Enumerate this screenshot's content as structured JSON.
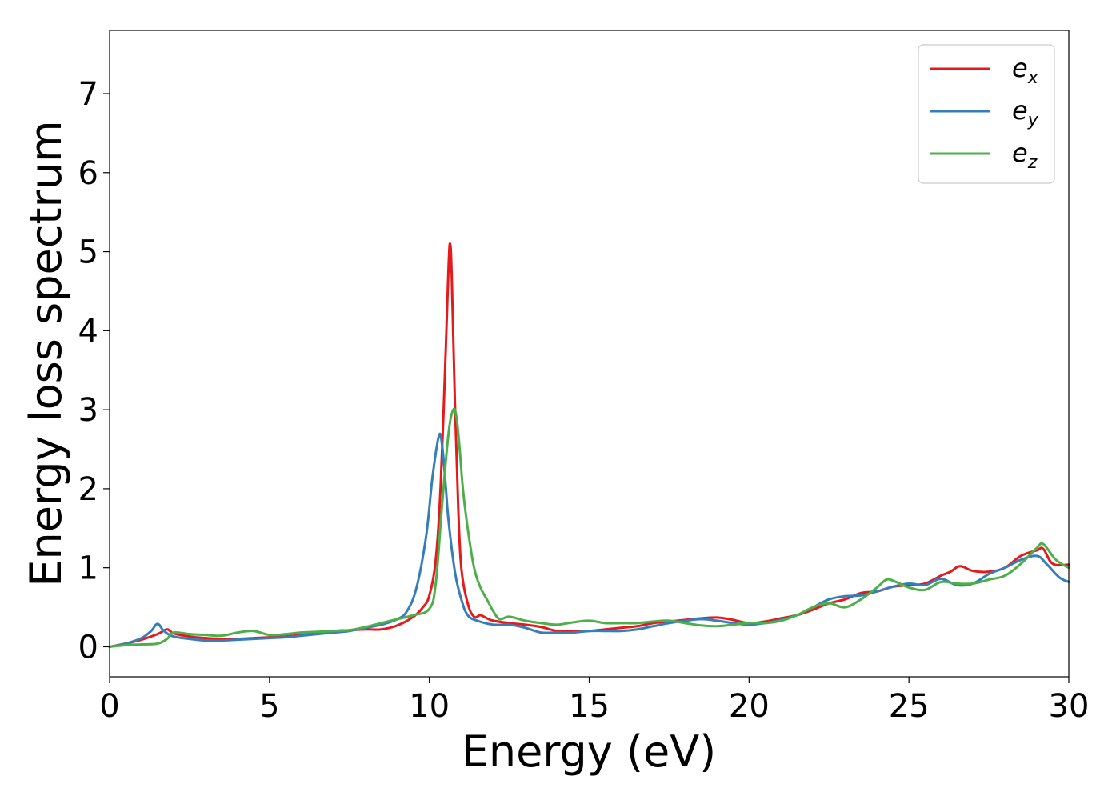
{
  "chart_data": {
    "type": "line",
    "title": "",
    "xlabel": "Energy (eV)",
    "ylabel": "Energy loss spectrum",
    "xlim": [
      0,
      30
    ],
    "ylim": [
      -0.38,
      7.8
    ],
    "xticks": [
      0,
      5,
      10,
      15,
      20,
      25,
      30
    ],
    "yticks": [
      0,
      1,
      2,
      3,
      4,
      5,
      6,
      7
    ],
    "grid": false,
    "legend_position": "top-right",
    "series": [
      {
        "name": "e_x",
        "legend_base": "e",
        "legend_sub": "x",
        "color": "#e41a1c",
        "x": [
          0,
          0.5,
          1.0,
          1.5,
          1.8,
          2.0,
          2.5,
          3.0,
          3.5,
          4.0,
          4.5,
          5.0,
          5.5,
          6.0,
          6.5,
          7.0,
          7.5,
          8.0,
          8.5,
          9.0,
          9.5,
          9.8,
          10.0,
          10.2,
          10.35,
          10.5,
          10.6,
          10.65,
          10.7,
          10.8,
          10.9,
          11.0,
          11.2,
          11.4,
          11.6,
          11.8,
          12.0,
          12.5,
          13.0,
          13.5,
          14.0,
          14.5,
          15.0,
          15.5,
          16.0,
          16.5,
          17.0,
          17.5,
          18.0,
          18.5,
          19.0,
          19.5,
          20.0,
          20.5,
          21.0,
          21.5,
          22.0,
          22.5,
          23.0,
          23.5,
          24.0,
          24.5,
          25.0,
          25.5,
          26.0,
          26.3,
          26.6,
          27.0,
          27.5,
          28.0,
          28.5,
          29.0,
          29.2,
          29.5,
          30.0
        ],
        "y": [
          0.0,
          0.04,
          0.09,
          0.16,
          0.22,
          0.17,
          0.13,
          0.11,
          0.1,
          0.1,
          0.11,
          0.12,
          0.13,
          0.15,
          0.17,
          0.2,
          0.21,
          0.22,
          0.22,
          0.27,
          0.38,
          0.5,
          0.65,
          1.1,
          2.0,
          3.6,
          4.8,
          5.1,
          4.7,
          3.1,
          1.8,
          1.0,
          0.55,
          0.38,
          0.4,
          0.36,
          0.33,
          0.3,
          0.28,
          0.25,
          0.2,
          0.2,
          0.2,
          0.22,
          0.24,
          0.26,
          0.3,
          0.32,
          0.34,
          0.36,
          0.37,
          0.34,
          0.3,
          0.32,
          0.36,
          0.4,
          0.47,
          0.55,
          0.6,
          0.68,
          0.7,
          0.76,
          0.78,
          0.8,
          0.9,
          0.95,
          1.02,
          0.96,
          0.95,
          1.0,
          1.15,
          1.22,
          1.24,
          1.05,
          1.04
        ]
      },
      {
        "name": "e_y",
        "legend_base": "e",
        "legend_sub": "y",
        "color": "#377eb8",
        "x": [
          0,
          0.5,
          1.0,
          1.3,
          1.5,
          1.7,
          2.0,
          2.5,
          3.0,
          3.5,
          4.0,
          4.5,
          5.0,
          5.5,
          6.0,
          6.5,
          7.0,
          7.5,
          8.0,
          8.5,
          9.0,
          9.3,
          9.6,
          9.9,
          10.1,
          10.3,
          10.4,
          10.5,
          10.6,
          10.8,
          11.0,
          11.2,
          11.5,
          12.0,
          12.5,
          13.0,
          13.5,
          14.0,
          14.5,
          15.0,
          15.5,
          16.0,
          16.5,
          17.0,
          17.5,
          18.0,
          18.5,
          19.0,
          19.5,
          20.0,
          20.5,
          21.0,
          21.5,
          22.0,
          22.5,
          23.0,
          23.5,
          24.0,
          24.5,
          25.0,
          25.5,
          26.0,
          26.5,
          27.0,
          27.5,
          28.0,
          28.5,
          29.0,
          29.3,
          29.7,
          30.0
        ],
        "y": [
          0.0,
          0.04,
          0.11,
          0.2,
          0.29,
          0.2,
          0.13,
          0.1,
          0.08,
          0.08,
          0.09,
          0.1,
          0.11,
          0.12,
          0.14,
          0.16,
          0.18,
          0.2,
          0.24,
          0.28,
          0.35,
          0.45,
          0.75,
          1.4,
          2.15,
          2.67,
          2.55,
          2.1,
          1.6,
          0.95,
          0.6,
          0.4,
          0.33,
          0.28,
          0.28,
          0.24,
          0.18,
          0.18,
          0.18,
          0.2,
          0.2,
          0.2,
          0.22,
          0.26,
          0.3,
          0.33,
          0.35,
          0.33,
          0.3,
          0.28,
          0.3,
          0.34,
          0.4,
          0.5,
          0.6,
          0.64,
          0.65,
          0.7,
          0.76,
          0.8,
          0.78,
          0.86,
          0.78,
          0.8,
          0.92,
          1.0,
          1.1,
          1.15,
          1.05,
          0.88,
          0.82
        ]
      },
      {
        "name": "e_z",
        "legend_base": "e",
        "legend_sub": "z",
        "color": "#4daf4a",
        "x": [
          0,
          0.5,
          1.0,
          1.5,
          1.8,
          2.0,
          2.5,
          3.0,
          3.5,
          4.0,
          4.5,
          5.0,
          5.5,
          6.0,
          6.5,
          7.0,
          7.5,
          8.0,
          8.5,
          9.0,
          9.5,
          10.0,
          10.2,
          10.4,
          10.6,
          10.75,
          10.85,
          10.95,
          11.05,
          11.2,
          11.4,
          11.6,
          11.8,
          12.0,
          12.2,
          12.5,
          13.0,
          13.5,
          14.0,
          14.5,
          15.0,
          15.5,
          16.0,
          16.5,
          17.0,
          17.5,
          18.0,
          18.5,
          19.0,
          19.5,
          20.0,
          20.5,
          21.0,
          21.5,
          22.0,
          22.5,
          23.0,
          23.5,
          24.0,
          24.3,
          24.6,
          25.0,
          25.5,
          26.0,
          26.5,
          27.0,
          27.5,
          28.0,
          28.5,
          29.0,
          29.2,
          29.6,
          30.0
        ],
        "y": [
          0.0,
          0.02,
          0.03,
          0.04,
          0.1,
          0.18,
          0.16,
          0.15,
          0.14,
          0.18,
          0.2,
          0.15,
          0.16,
          0.18,
          0.19,
          0.2,
          0.21,
          0.25,
          0.3,
          0.35,
          0.4,
          0.48,
          0.8,
          1.8,
          2.7,
          3.0,
          2.9,
          2.5,
          2.0,
          1.5,
          1.0,
          0.75,
          0.6,
          0.45,
          0.35,
          0.38,
          0.33,
          0.3,
          0.28,
          0.31,
          0.33,
          0.3,
          0.3,
          0.3,
          0.32,
          0.33,
          0.3,
          0.27,
          0.26,
          0.28,
          0.3,
          0.3,
          0.33,
          0.4,
          0.5,
          0.55,
          0.5,
          0.6,
          0.75,
          0.85,
          0.82,
          0.75,
          0.72,
          0.82,
          0.8,
          0.8,
          0.85,
          0.9,
          1.05,
          1.25,
          1.3,
          1.1,
          1.0
        ]
      }
    ]
  }
}
